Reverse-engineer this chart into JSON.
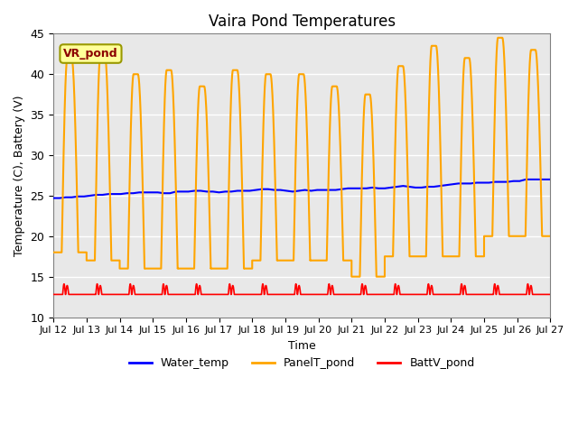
{
  "title": "Vaira Pond Temperatures",
  "xlabel": "Time",
  "ylabel": "Temperature (C), Battery (V)",
  "ylim": [
    10,
    45
  ],
  "xtick_labels": [
    "Jul 12",
    "Jul 13",
    "Jul 14",
    "Jul 15",
    "Jul 16",
    "Jul 17",
    "Jul 18",
    "Jul 19",
    "Jul 20",
    "Jul 21",
    "Jul 22",
    "Jul 23",
    "Jul 24",
    "Jul 25",
    "Jul 26",
    "Jul 27"
  ],
  "ytick_values": [
    10,
    15,
    20,
    25,
    30,
    35,
    40,
    45
  ],
  "legend_entries": [
    "Water_temp",
    "PanelT_pond",
    "BattV_pond"
  ],
  "site_label": "VR_pond",
  "site_label_color": "#8B0000",
  "site_label_bg": "#FFFF99",
  "background_color": "#E8E8E8",
  "water_temp": [
    24.7,
    24.7,
    24.8,
    24.8,
    24.9,
    24.9,
    25.0,
    25.1,
    25.1,
    25.2,
    25.2,
    25.2,
    25.3,
    25.3,
    25.4,
    25.4,
    25.4,
    25.4,
    25.3,
    25.3,
    25.5,
    25.5,
    25.5,
    25.6,
    25.6,
    25.5,
    25.5,
    25.4,
    25.5,
    25.5,
    25.6,
    25.6,
    25.6,
    25.7,
    25.8,
    25.8,
    25.7,
    25.7,
    25.6,
    25.5,
    25.6,
    25.7,
    25.6,
    25.7,
    25.7,
    25.7,
    25.7,
    25.8,
    25.9,
    25.9,
    25.9,
    25.9,
    26.0,
    25.9,
    25.9,
    26.0,
    26.1,
    26.2,
    26.1,
    26.0,
    26.0,
    26.1,
    26.1,
    26.2,
    26.3,
    26.4,
    26.5,
    26.5,
    26.5,
    26.6,
    26.6,
    26.6,
    26.7,
    26.7,
    26.7,
    26.8,
    26.8,
    27.0,
    27.0,
    27.0,
    27.0,
    27.0
  ]
}
